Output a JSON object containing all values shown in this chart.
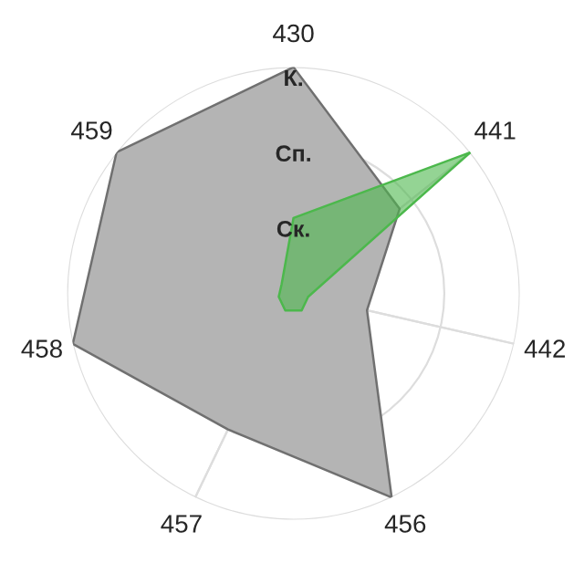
{
  "chart_data": {
    "type": "radar",
    "categories": [
      "430",
      "441",
      "442",
      "456",
      "457",
      "458",
      "459"
    ],
    "ylim": [
      0,
      3
    ],
    "yticks": [
      {
        "value": 1,
        "label": "Ск."
      },
      {
        "value": 2,
        "label": "Сп."
      },
      {
        "value": 3,
        "label": "К."
      }
    ],
    "grid": true,
    "series": [
      {
        "color": "#b4b4b4",
        "values": [
          3,
          1.8,
          1,
          3,
          2,
          3,
          3
        ]
      },
      {
        "color": "#4cb84c",
        "values": [
          1,
          3,
          0.2,
          0.25,
          0.25,
          0.2,
          0.2
        ]
      }
    ]
  }
}
